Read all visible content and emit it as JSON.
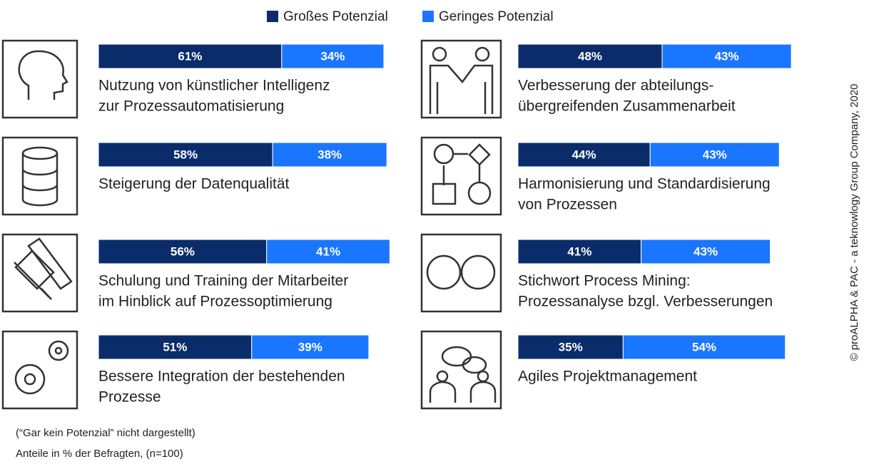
{
  "chart_data": {
    "type": "stacked_bar",
    "categories": [
      [
        "Nutzung von künstlicher Intelligenz",
        "zur Prozessautomatisierung"
      ],
      [
        "Steigerung der Datenqualität"
      ],
      [
        "Schulung und Training der Mitarbeiter",
        "im Hinblick auf Prozessoptimierung"
      ],
      [
        "Bessere Integration der bestehenden",
        "Prozesse"
      ],
      [
        "Verbesserung der abteilungs-",
        "übergreifenden Zusammenarbeit"
      ],
      [
        "Harmonisierung und Standardisierung",
        "von Prozessen"
      ],
      [
        "Stichwort Process Mining:",
        "Prozessanalyse bzgl. Verbesserungen"
      ],
      [
        "Agiles Projektmanagement"
      ]
    ],
    "series": [
      {
        "name": "Großes Potenzial",
        "color": "#0b2c6b",
        "values": [
          61,
          58,
          56,
          51,
          48,
          44,
          41,
          35
        ],
        "value_labels": [
          "61%",
          "58%",
          "56%",
          "51%",
          "48%",
          "44%",
          "41%",
          "35%"
        ]
      },
      {
        "name": "Geringes Potenzial",
        "color": "#1a76ff",
        "values": [
          34,
          38,
          41,
          39,
          43,
          43,
          43,
          54
        ],
        "value_labels": [
          "34%",
          "38%",
          "41%",
          "39%",
          "43%",
          "43%",
          "43%",
          "54%"
        ]
      }
    ],
    "notes": [
      "(“Gar kein Potenzial” nicht dargestellt)",
      "Anteile in % der Befragten, (n=100)"
    ],
    "copyright": "© proALPHA & PAC - a teknowlogy Group Company, 2020"
  }
}
